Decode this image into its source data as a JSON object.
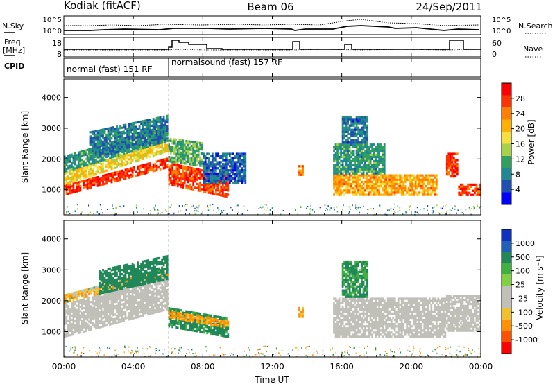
{
  "header": {
    "radar": "Kodiak (fitACF)",
    "beam": "Beam 06",
    "date": "24/Sep/2011"
  },
  "summary_panels": {
    "nsky_label": "N.Sky",
    "nsearch_label": "N.Search",
    "noise_ticks": [
      "10^5",
      "10^0"
    ],
    "freq_label": "Freq.",
    "freq_unit": "[MHz]",
    "freq_ticks": [
      "18",
      "8"
    ],
    "nave_label": "Nave",
    "nave_ticks": [
      "60",
      "0"
    ],
    "cpid_label": "CPID",
    "cpid_programs": [
      {
        "name": "normal (fast) 151 RF",
        "start_hour": 0,
        "end_hour": 6
      },
      {
        "name": "normalsound (fast) 157 RF",
        "start_hour": 6,
        "end_hour": 24
      }
    ]
  },
  "x_axis": {
    "label": "Time UT",
    "ticks": [
      "00:00",
      "04:00",
      "08:00",
      "12:00",
      "16:00",
      "20:00",
      "00:00"
    ],
    "range_hours": [
      0,
      24
    ]
  },
  "power_panel": {
    "ylabel": "Slant Range [km]",
    "yticks": [
      "4000",
      "3000",
      "2000",
      "1000"
    ],
    "colorbar_label": "Power [dB]",
    "colorbar_ticks": [
      "28",
      "24",
      "20",
      "16",
      "12",
      "8",
      "4"
    ],
    "colorbar_colors": [
      "#ff0000",
      "#ff3300",
      "#ff8000",
      "#ffb000",
      "#f5e040",
      "#a8d048",
      "#30a060",
      "#208890",
      "#1f4fb0",
      "#0000ff"
    ]
  },
  "velocity_panel": {
    "ylabel": "Slant Range [km]",
    "yticks": [
      "4000",
      "3000",
      "2000",
      "1000"
    ],
    "colorbar_label": "Velocity [m s⁻¹]",
    "colorbar_ticks": [
      "1000",
      "500",
      "100",
      "25",
      "-25",
      "-100",
      "-500",
      "-1000"
    ],
    "colorbar_colors": [
      "#1030c0",
      "#2060b8",
      "#208858",
      "#40b040",
      "#80d040",
      "#c0c0b8",
      "#c0c0b8",
      "#f0c030",
      "#ff9000",
      "#ff5000",
      "#ff0000"
    ]
  },
  "chart_data": [
    {
      "type": "heatmap",
      "title": "Power [dB]",
      "xlabel": "Time UT",
      "ylabel": "Slant Range [km]",
      "xlim": [
        0,
        24
      ],
      "ylim": [
        180,
        4600
      ],
      "colorbar": {
        "label": "Power [dB]",
        "range": [
          0,
          32
        ]
      },
      "regions": [
        {
          "t0": 0.0,
          "t1": 6.0,
          "r0": 800,
          "r1": 1150,
          "slope": 150,
          "value": 28
        },
        {
          "t0": 0.0,
          "t1": 6.0,
          "r0": 1150,
          "r1": 1550,
          "slope": 180,
          "value": 18
        },
        {
          "t0": 0.0,
          "t1": 6.0,
          "r0": 1550,
          "r1": 2100,
          "slope": 170,
          "value": 10
        },
        {
          "t0": 1.5,
          "t1": 6.0,
          "r0": 2000,
          "r1": 2900,
          "slope": 120,
          "value": 8
        },
        {
          "t0": 6.0,
          "t1": 9.5,
          "r0": 1150,
          "r1": 1900,
          "slope": -120,
          "value": 27
        },
        {
          "t0": 6.0,
          "t1": 8.0,
          "r0": 1900,
          "r1": 2700,
          "slope": -80,
          "value": 12
        },
        {
          "t0": 8.0,
          "t1": 10.5,
          "r0": 1200,
          "r1": 2200,
          "slope": 0,
          "value": 6
        },
        {
          "t0": 13.5,
          "t1": 13.8,
          "r0": 1450,
          "r1": 1800,
          "slope": 0,
          "value": 24
        },
        {
          "t0": 15.5,
          "t1": 21.5,
          "r0": 800,
          "r1": 1500,
          "slope": 0,
          "value": 22
        },
        {
          "t0": 15.5,
          "t1": 18.5,
          "r0": 1500,
          "r1": 2500,
          "slope": 0,
          "value": 10
        },
        {
          "t0": 16.0,
          "t1": 17.5,
          "r0": 2500,
          "r1": 3400,
          "slope": 0,
          "value": 7
        },
        {
          "t0": 22.0,
          "t1": 22.7,
          "r0": 1400,
          "r1": 2200,
          "slope": 0,
          "value": 28
        },
        {
          "t0": 22.7,
          "t1": 24.0,
          "r0": 800,
          "r1": 1200,
          "slope": 0,
          "value": 27
        }
      ]
    },
    {
      "type": "heatmap",
      "title": "Velocity [m s⁻¹]",
      "xlabel": "Time UT",
      "ylabel": "Slant Range [km]",
      "xlim": [
        0,
        24
      ],
      "ylim": [
        180,
        4600
      ],
      "colorbar": {
        "label": "Velocity [m s⁻¹]",
        "range": [
          -1000,
          1000
        ]
      },
      "regions": [
        {
          "t0": 0.0,
          "t1": 6.0,
          "r0": 800,
          "r1": 1900,
          "slope": 150,
          "value": 0
        },
        {
          "t0": 0.0,
          "t1": 6.0,
          "r0": 1900,
          "r1": 2200,
          "slope": 150,
          "value": -60
        },
        {
          "t0": 2.0,
          "t1": 6.0,
          "r0": 2200,
          "r1": 3000,
          "slope": 120,
          "value": 200
        },
        {
          "t0": 6.0,
          "t1": 9.5,
          "r0": 1150,
          "r1": 1800,
          "slope": -100,
          "value": 150
        },
        {
          "t0": 6.0,
          "t1": 9.5,
          "r0": 1450,
          "r1": 1700,
          "slope": -100,
          "value": -150
        },
        {
          "t0": 13.5,
          "t1": 13.8,
          "r0": 1450,
          "r1": 1800,
          "slope": 0,
          "value": -150
        },
        {
          "t0": 15.5,
          "t1": 22.0,
          "r0": 800,
          "r1": 2100,
          "slope": 0,
          "value": 0
        },
        {
          "t0": 16.0,
          "t1": 17.5,
          "r0": 2100,
          "r1": 3300,
          "slope": 0,
          "value": 120
        },
        {
          "t0": 22.0,
          "t1": 24.0,
          "r0": 1000,
          "r1": 2200,
          "slope": 0,
          "value": 0
        }
      ]
    }
  ]
}
